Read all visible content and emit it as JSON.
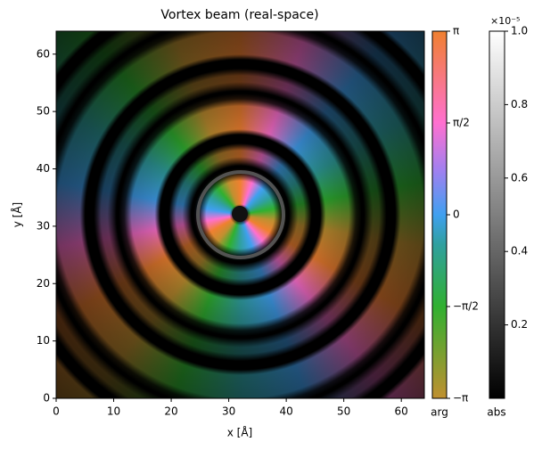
{
  "chart_data": {
    "type": "image",
    "title": "Vortex beam (real-space)",
    "xlabel": "x [Å]",
    "ylabel": "y [Å]",
    "xlim": [
      0,
      64
    ],
    "ylim": [
      0,
      64
    ],
    "xticks": [
      0,
      10,
      20,
      30,
      40,
      50,
      60
    ],
    "yticks": [
      0,
      10,
      20,
      30,
      40,
      50,
      60
    ],
    "colorbars": [
      {
        "label": "arg",
        "lim": [
          -3.141592653589793,
          3.141592653589793
        ],
        "ticks": [
          {
            "value": -3.141592653589793,
            "label": "−π"
          },
          {
            "value": -1.5707963267948966,
            "label": "−π/2"
          },
          0,
          {
            "value": 1.5707963267948966,
            "label": "π/2"
          },
          {
            "value": 3.141592653589793,
            "label": "π"
          }
        ]
      },
      {
        "label": "abs",
        "lim": [
          0,
          1
        ],
        "offset": "×10⁻⁵",
        "ticks": [
          0.2,
          0.4,
          0.6,
          0.8,
          {
            "value": 1,
            "label": "1.0"
          }
        ]
      }
    ]
  }
}
